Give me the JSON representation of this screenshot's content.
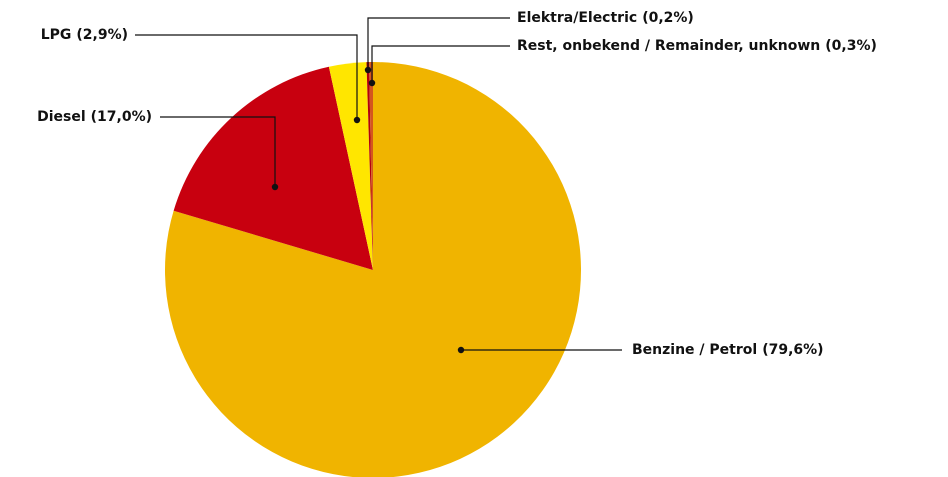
{
  "chart_data": {
    "type": "pie",
    "categories": [
      "Benzine / Petrol",
      "Diesel",
      "LPG",
      "Elektra/Electric",
      "Rest, onbekend / Remainder, unknown"
    ],
    "values": [
      79.6,
      17.0,
      2.9,
      0.2,
      0.3
    ],
    "value_labels": [
      "(79,6%)",
      "(17,0%)",
      "(2,9%)",
      "(0,2%)",
      "(0,3%)"
    ],
    "colors": [
      "#f0b400",
      "#c8000f",
      "#ffe600",
      "#b3000c",
      "#d4561e"
    ]
  }
}
